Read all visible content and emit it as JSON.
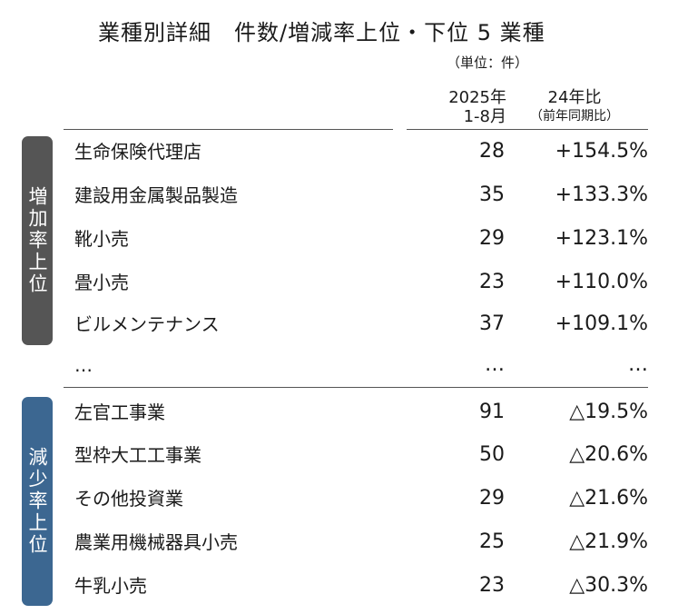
{
  "title": "業種別詳細　件数/増減率上位・下位 5 業種",
  "unit": "（単位：件）",
  "columns": {
    "count_line1": "2025年",
    "count_line2": "1-8月",
    "rate_line1": "24年比",
    "rate_line2": "（前年同期比）"
  },
  "groups": {
    "increase_label": "増加率上位",
    "decrease_label": "減少率上位"
  },
  "rows": [
    {
      "name": "生命保険代理店",
      "count": "28",
      "rate": "+154.5%"
    },
    {
      "name": "建設用金属製品製造",
      "count": "35",
      "rate": "+133.3%"
    },
    {
      "name": "靴小売",
      "count": "29",
      "rate": "+123.1%"
    },
    {
      "name": "畳小売",
      "count": "23",
      "rate": "+110.0%"
    },
    {
      "name": "ビルメンテナンス",
      "count": "37",
      "rate": "+109.1%"
    },
    {
      "name": "…",
      "count": "…",
      "rate": "…"
    },
    {
      "name": "左官工事業",
      "count": "91",
      "rate": "△19.5%"
    },
    {
      "name": "型枠大工工事業",
      "count": "50",
      "rate": "△20.6%"
    },
    {
      "name": "その他投資業",
      "count": "29",
      "rate": "△21.6%"
    },
    {
      "name": "農業用機械器具小売",
      "count": "25",
      "rate": "△21.9%"
    },
    {
      "name": "牛乳小売",
      "count": "23",
      "rate": "△30.3%"
    }
  ]
}
